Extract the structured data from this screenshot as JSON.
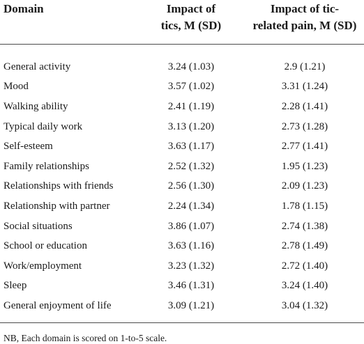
{
  "table": {
    "headers": {
      "domain": "Domain",
      "tics_line1": "Impact of",
      "tics_line2": "tics, M (SD)",
      "pain_line1": "Impact of tic-",
      "pain_line2": "related pain, M (SD)"
    },
    "rows": [
      {
        "domain": "General activity",
        "tics": "3.24 (1.03)",
        "pain": "2.9 (1.21)"
      },
      {
        "domain": "Mood",
        "tics": "3.57 (1.02)",
        "pain": "3.31 (1.24)"
      },
      {
        "domain": "Walking ability",
        "tics": "2.41 (1.19)",
        "pain": "2.28 (1.41)"
      },
      {
        "domain": "Typical daily work",
        "tics": "3.13 (1.20)",
        "pain": "2.73 (1.28)"
      },
      {
        "domain": "Self-esteem",
        "tics": "3.63 (1.17)",
        "pain": "2.77 (1.41)"
      },
      {
        "domain": "Family relationships",
        "tics": "2.52 (1.32)",
        "pain": "1.95 (1.23)"
      },
      {
        "domain": "Relationships with friends",
        "tics": "2.56 (1.30)",
        "pain": "2.09 (1.23)"
      },
      {
        "domain": "Relationship with partner",
        "tics": "2.24 (1.34)",
        "pain": "1.78 (1.15)"
      },
      {
        "domain": "Social situations",
        "tics": "3.86 (1.07)",
        "pain": "2.74 (1.38)"
      },
      {
        "domain": "School or education",
        "tics": "3.63 (1.16)",
        "pain": "2.78 (1.49)"
      },
      {
        "domain": "Work/employment",
        "tics": "3.23 (1.32)",
        "pain": "2.72 (1.40)"
      },
      {
        "domain": "Sleep",
        "tics": "3.46 (1.31)",
        "pain": "3.24 (1.40)"
      },
      {
        "domain": "General enjoyment of life",
        "tics": "3.09 (1.21)",
        "pain": "3.04 (1.32)"
      }
    ],
    "note": "NB, Each domain is scored on 1-to-5 scale."
  }
}
